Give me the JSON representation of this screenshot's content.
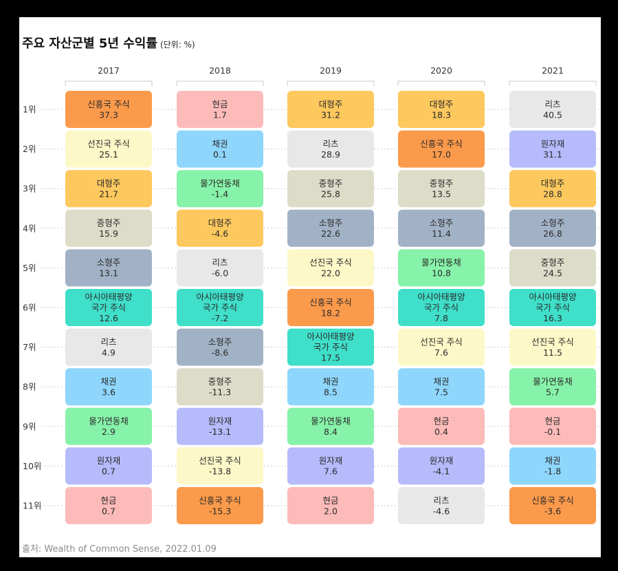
{
  "title": "주요 자산군별 5년 수익률",
  "unit": "(단위: %)",
  "source": "출처: Wealth of Common Sense, 2022.01.09",
  "colors": {
    "신흥국 주식": "#fb9a4b",
    "선진국 주식": "#fdf8c8",
    "대형주": "#fdc85d",
    "중형주": "#dcdcc9",
    "소형주": "#a2b2c6",
    "아시아태평양 국가 주식": "#3fdfc9",
    "리츠": "#e8e8e8",
    "채권": "#8ed6fc",
    "물가연동채": "#87f2a9",
    "원자재": "#b5bbfb",
    "현금": "#fcbbb9"
  },
  "chart_data": {
    "type": "table",
    "columns": [
      "2017",
      "2018",
      "2019",
      "2020",
      "2021"
    ],
    "ranks": [
      "1위",
      "2위",
      "3위",
      "4위",
      "5위",
      "6위",
      "7위",
      "8위",
      "9위",
      "10위",
      "11위"
    ],
    "cells": [
      [
        {
          "asset": "신흥국 주식",
          "value": "37.3"
        },
        {
          "asset": "선진국 주식",
          "value": "25.1"
        },
        {
          "asset": "대형주",
          "value": "21.7"
        },
        {
          "asset": "중형주",
          "value": "15.9"
        },
        {
          "asset": "소형주",
          "value": "13.1"
        },
        {
          "asset": "아시아태평양 국가 주식",
          "value": "12.6"
        },
        {
          "asset": "리츠",
          "value": "4.9"
        },
        {
          "asset": "채권",
          "value": "3.6"
        },
        {
          "asset": "물가연동채",
          "value": "2.9"
        },
        {
          "asset": "원자재",
          "value": "0.7"
        },
        {
          "asset": "현금",
          "value": "0.7"
        }
      ],
      [
        {
          "asset": "현금",
          "value": "1.7"
        },
        {
          "asset": "채권",
          "value": "0.1"
        },
        {
          "asset": "물가연동채",
          "value": "-1.4"
        },
        {
          "asset": "대형주",
          "value": "-4.6"
        },
        {
          "asset": "리츠",
          "value": "-6.0"
        },
        {
          "asset": "아시아태평양 국가 주식",
          "value": "-7.2"
        },
        {
          "asset": "소형주",
          "value": "-8.6"
        },
        {
          "asset": "중형주",
          "value": "-11.3"
        },
        {
          "asset": "원자재",
          "value": "-13.1"
        },
        {
          "asset": "선진국 주식",
          "value": "-13.8"
        },
        {
          "asset": "신흥국 주식",
          "value": "-15.3"
        }
      ],
      [
        {
          "asset": "대형주",
          "value": "31.2"
        },
        {
          "asset": "리츠",
          "value": "28.9"
        },
        {
          "asset": "중형주",
          "value": "25.8"
        },
        {
          "asset": "소형주",
          "value": "22.6"
        },
        {
          "asset": "선진국 주식",
          "value": "22.0"
        },
        {
          "asset": "신흥국 주식",
          "value": "18.2"
        },
        {
          "asset": "아시아태평양 국가 주식",
          "value": "17.5"
        },
        {
          "asset": "채권",
          "value": "8.5"
        },
        {
          "asset": "물가연동채",
          "value": "8.4"
        },
        {
          "asset": "원자재",
          "value": "7.6"
        },
        {
          "asset": "현금",
          "value": "2.0"
        }
      ],
      [
        {
          "asset": "대형주",
          "value": "18.3"
        },
        {
          "asset": "신흥국 주식",
          "value": "17.0"
        },
        {
          "asset": "중형주",
          "value": "13.5"
        },
        {
          "asset": "소형주",
          "value": "11.4"
        },
        {
          "asset": "물가연동채",
          "value": "10.8"
        },
        {
          "asset": "아시아태평양 국가 주식",
          "value": "7.8"
        },
        {
          "asset": "선진국 주식",
          "value": "7.6"
        },
        {
          "asset": "채권",
          "value": "7.5"
        },
        {
          "asset": "현금",
          "value": "0.4"
        },
        {
          "asset": "원자재",
          "value": "-4.1"
        },
        {
          "asset": "리츠",
          "value": "-4.6"
        }
      ],
      [
        {
          "asset": "리츠",
          "value": "40.5"
        },
        {
          "asset": "원자재",
          "value": "31.1"
        },
        {
          "asset": "대형주",
          "value": "28.8"
        },
        {
          "asset": "소형주",
          "value": "26.8"
        },
        {
          "asset": "중형주",
          "value": "24.5"
        },
        {
          "asset": "아시아태평양 국가 주식",
          "value": "16.3"
        },
        {
          "asset": "선진국 주식",
          "value": "11.5"
        },
        {
          "asset": "물가연동채",
          "value": "5.7"
        },
        {
          "asset": "현금",
          "value": "-0.1"
        },
        {
          "asset": "채권",
          "value": "-1.8"
        },
        {
          "asset": "신흥국 주식",
          "value": "-3.6"
        }
      ]
    ]
  }
}
